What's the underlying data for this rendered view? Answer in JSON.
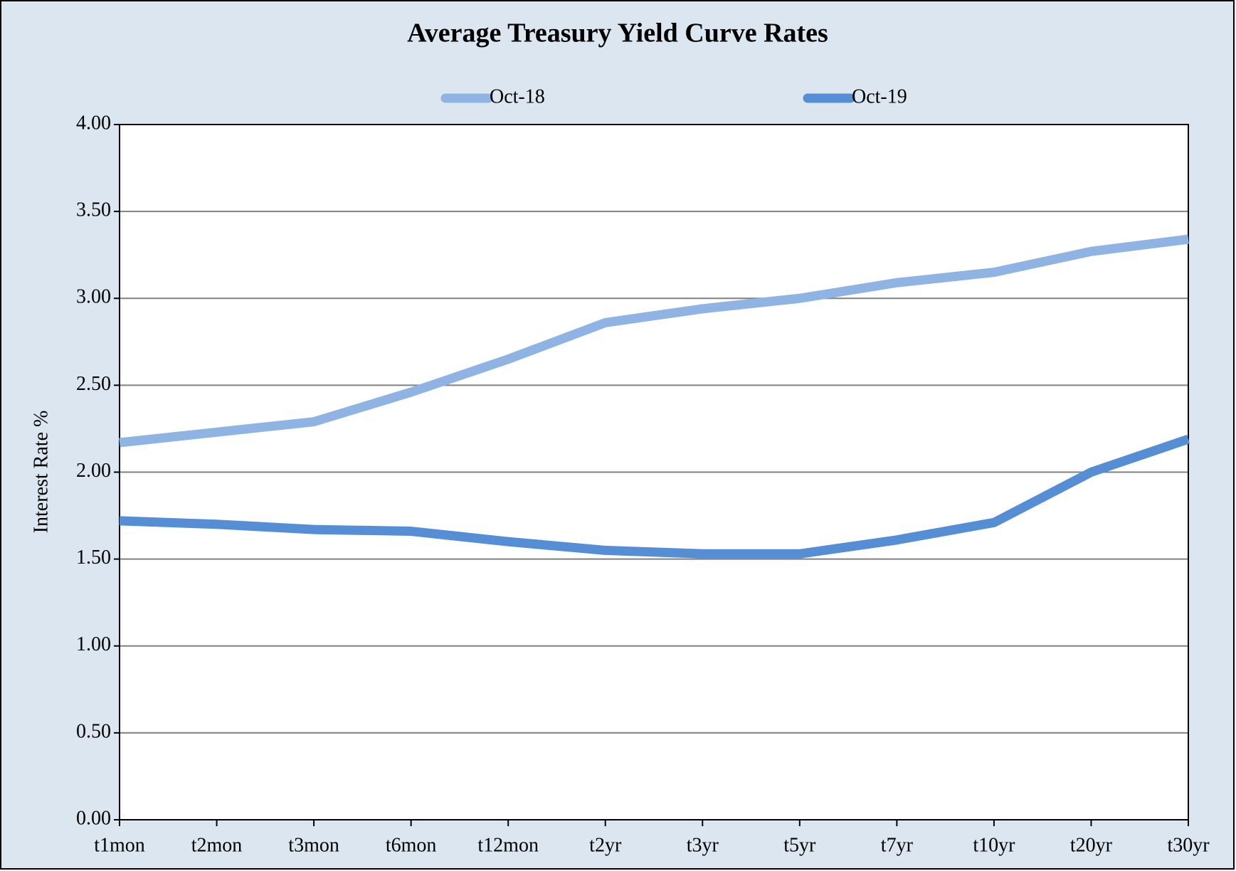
{
  "chart_data": {
    "type": "line",
    "title": "Average  Treasury Yield Curve Rates",
    "y_label": "Interest Rate %",
    "categories": [
      "t1mon",
      "t2mon",
      "t3mon",
      "t6mon",
      "t12mon",
      "t2yr",
      "t3yr",
      "t5yr",
      "t7yr",
      "t10yr",
      "t20yr",
      "t30yr"
    ],
    "series": [
      {
        "name": "Oct-18",
        "color": "#8fb4e3",
        "values": [
          2.17,
          2.23,
          2.29,
          2.46,
          2.65,
          2.86,
          2.94,
          3.0,
          3.09,
          3.15,
          3.27,
          3.34
        ]
      },
      {
        "name": "Oct-19",
        "color": "#558ed5",
        "values": [
          1.72,
          1.7,
          1.67,
          1.66,
          1.6,
          1.55,
          1.53,
          1.53,
          1.61,
          1.71,
          2.0,
          2.19
        ]
      }
    ],
    "ylim": [
      0,
      4
    ],
    "yticks": [
      {
        "value": 0,
        "label": "0.00"
      },
      {
        "value": 0.5,
        "label": "0.50"
      },
      {
        "value": 1,
        "label": "1.00"
      },
      {
        "value": 1.5,
        "label": "1.50"
      },
      {
        "value": 2,
        "label": "2.00"
      },
      {
        "value": 2.5,
        "label": "2.50"
      },
      {
        "value": 3,
        "label": "3.00"
      },
      {
        "value": 3.5,
        "label": "3.50"
      },
      {
        "value": 4,
        "label": "4.00"
      }
    ],
    "grid": true,
    "legend": "top"
  }
}
